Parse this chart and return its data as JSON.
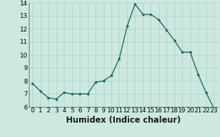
{
  "x": [
    0,
    1,
    2,
    3,
    4,
    5,
    6,
    7,
    8,
    9,
    10,
    11,
    12,
    13,
    14,
    15,
    16,
    17,
    18,
    19,
    20,
    21,
    22,
    23
  ],
  "y": [
    7.8,
    7.2,
    6.7,
    6.6,
    7.1,
    7.0,
    7.0,
    7.0,
    7.9,
    8.0,
    8.4,
    9.7,
    12.2,
    13.9,
    13.1,
    13.1,
    12.7,
    11.9,
    11.1,
    10.2,
    10.2,
    8.5,
    7.1,
    5.9
  ],
  "line_color": "#1a6b5e",
  "marker": "o",
  "marker_size": 2.2,
  "line_width": 1.0,
  "xlabel": "Humidex (Indice chaleur)",
  "ylim": [
    6,
    14
  ],
  "xlim": [
    -0.5,
    23.5
  ],
  "yticks": [
    6,
    7,
    8,
    9,
    10,
    11,
    12,
    13,
    14
  ],
  "xticks": [
    0,
    1,
    2,
    3,
    4,
    5,
    6,
    7,
    8,
    9,
    10,
    11,
    12,
    13,
    14,
    15,
    16,
    17,
    18,
    19,
    20,
    21,
    22,
    23
  ],
  "xtick_labels": [
    "0",
    "1",
    "2",
    "3",
    "4",
    "5",
    "6",
    "7",
    "8",
    "9",
    "10",
    "11",
    "12",
    "13",
    "14",
    "15",
    "16",
    "17",
    "18",
    "19",
    "20",
    "21",
    "22",
    "23"
  ],
  "background_color": "#cce8e0",
  "grid_color": "#aacfc5",
  "tick_fontsize": 6.5,
  "xlabel_fontsize": 8.5
}
